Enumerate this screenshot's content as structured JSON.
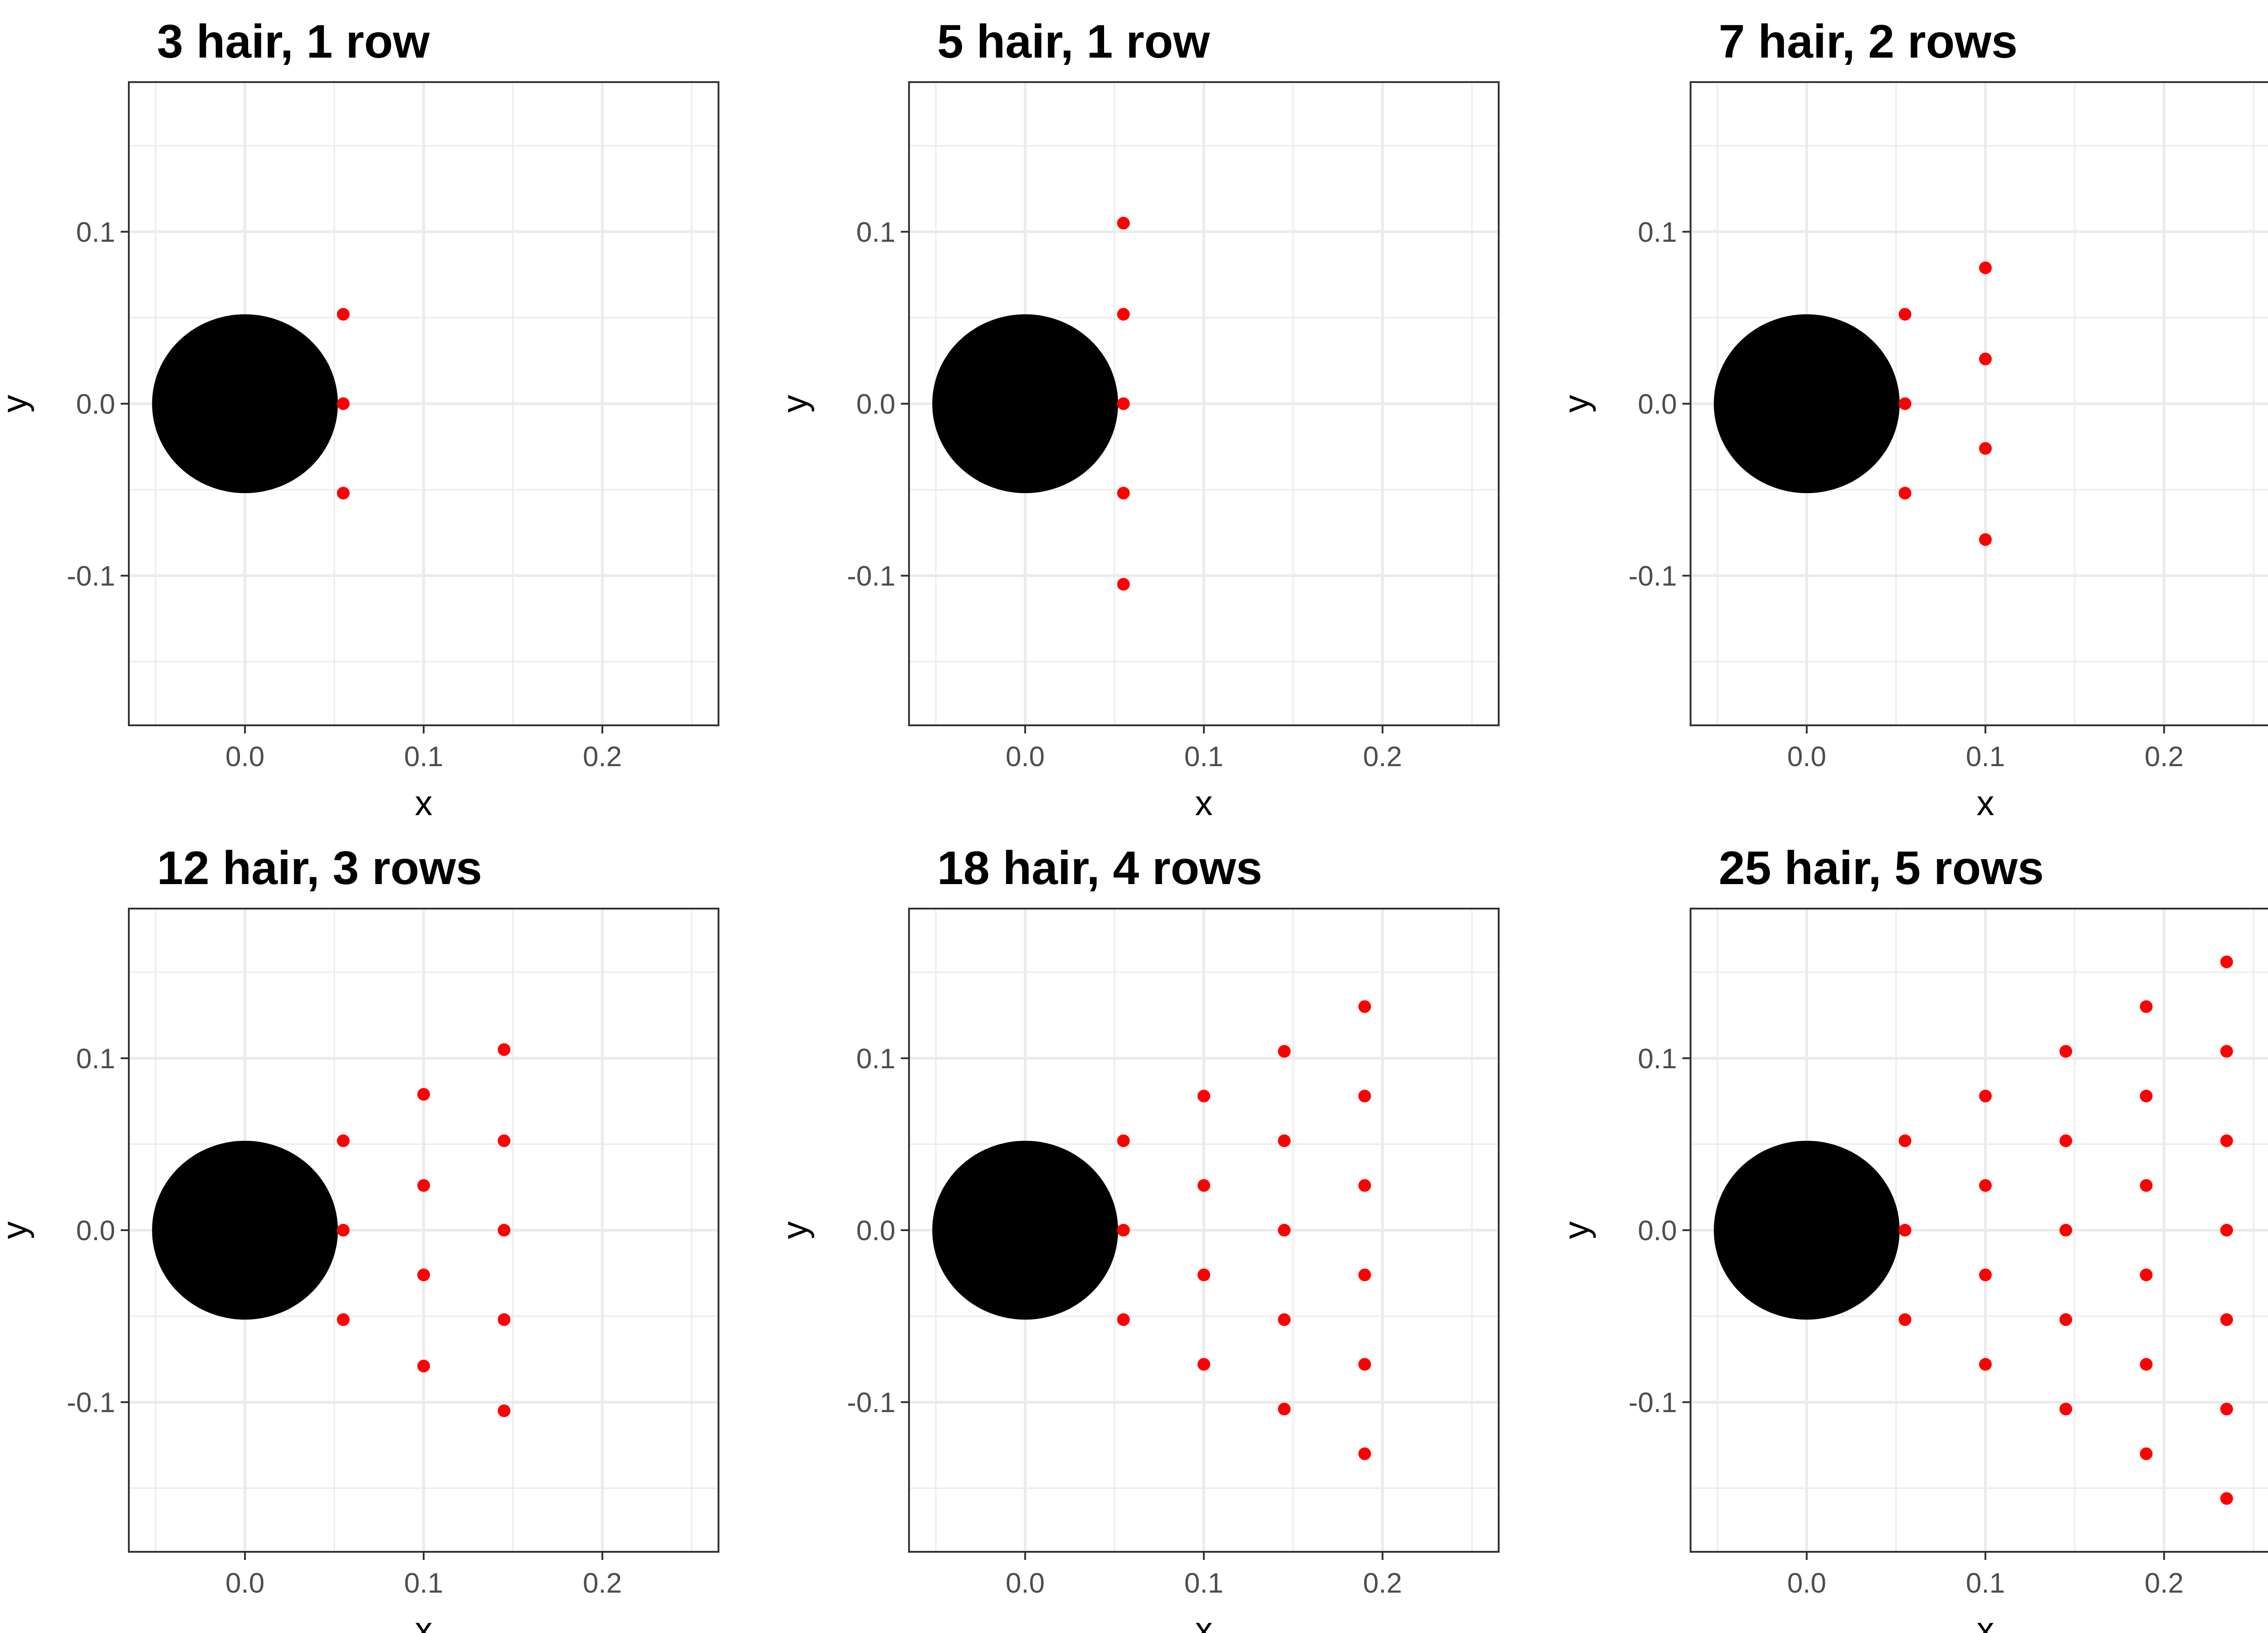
{
  "chart_data": [
    {
      "type": "scatter",
      "title": "3 hair, 1 row",
      "xlabel": "x",
      "ylabel": "y",
      "xlim": [
        -0.065,
        0.265
      ],
      "ylim": [
        -0.187,
        0.187
      ],
      "x_ticks": [
        "0.0",
        "0.1",
        "0.2"
      ],
      "y_ticks": [
        "0.1",
        "0.0",
        "-0.1"
      ],
      "grid": true,
      "circle": {
        "x": 0,
        "y": 0,
        "radius": 0.052,
        "color": "#000000"
      },
      "point_color": "#ff0000",
      "points": [
        [
          0.055,
          0.052
        ],
        [
          0.055,
          0.0
        ],
        [
          0.055,
          -0.052
        ]
      ]
    },
    {
      "type": "scatter",
      "title": "5 hair, 1 row",
      "xlabel": "x",
      "ylabel": "y",
      "xlim": [
        -0.065,
        0.265
      ],
      "ylim": [
        -0.187,
        0.187
      ],
      "x_ticks": [
        "0.0",
        "0.1",
        "0.2"
      ],
      "y_ticks": [
        "0.1",
        "0.0",
        "-0.1"
      ],
      "grid": true,
      "circle": {
        "x": 0,
        "y": 0,
        "radius": 0.052,
        "color": "#000000"
      },
      "point_color": "#ff0000",
      "points": [
        [
          0.055,
          0.105
        ],
        [
          0.055,
          0.052
        ],
        [
          0.055,
          0.0
        ],
        [
          0.055,
          -0.052
        ],
        [
          0.055,
          -0.105
        ]
      ]
    },
    {
      "type": "scatter",
      "title": "7 hair, 2 rows",
      "xlabel": "x",
      "ylabel": "y",
      "xlim": [
        -0.065,
        0.265
      ],
      "ylim": [
        -0.187,
        0.187
      ],
      "x_ticks": [
        "0.0",
        "0.1",
        "0.2"
      ],
      "y_ticks": [
        "0.1",
        "0.0",
        "-0.1"
      ],
      "grid": true,
      "circle": {
        "x": 0,
        "y": 0,
        "radius": 0.052,
        "color": "#000000"
      },
      "point_color": "#ff0000",
      "points": [
        [
          0.055,
          0.052
        ],
        [
          0.055,
          0.0
        ],
        [
          0.055,
          -0.052
        ],
        [
          0.1,
          0.079
        ],
        [
          0.1,
          0.026
        ],
        [
          0.1,
          -0.026
        ],
        [
          0.1,
          -0.079
        ]
      ]
    },
    {
      "type": "scatter",
      "title": "12 hair, 3 rows",
      "xlabel": "x",
      "ylabel": "y",
      "xlim": [
        -0.065,
        0.265
      ],
      "ylim": [
        -0.187,
        0.187
      ],
      "x_ticks": [
        "0.0",
        "0.1",
        "0.2"
      ],
      "y_ticks": [
        "0.1",
        "0.0",
        "-0.1"
      ],
      "grid": true,
      "circle": {
        "x": 0,
        "y": 0,
        "radius": 0.052,
        "color": "#000000"
      },
      "point_color": "#ff0000",
      "points": [
        [
          0.055,
          0.052
        ],
        [
          0.055,
          0.0
        ],
        [
          0.055,
          -0.052
        ],
        [
          0.1,
          0.079
        ],
        [
          0.1,
          0.026
        ],
        [
          0.1,
          -0.026
        ],
        [
          0.1,
          -0.079
        ],
        [
          0.145,
          0.105
        ],
        [
          0.145,
          0.052
        ],
        [
          0.145,
          0.0
        ],
        [
          0.145,
          -0.052
        ],
        [
          0.145,
          -0.105
        ]
      ]
    },
    {
      "type": "scatter",
      "title": "18 hair, 4 rows",
      "xlabel": "x",
      "ylabel": "y",
      "xlim": [
        -0.065,
        0.265
      ],
      "ylim": [
        -0.187,
        0.187
      ],
      "x_ticks": [
        "0.0",
        "0.1",
        "0.2"
      ],
      "y_ticks": [
        "0.1",
        "0.0",
        "-0.1"
      ],
      "grid": true,
      "circle": {
        "x": 0,
        "y": 0,
        "radius": 0.052,
        "color": "#000000"
      },
      "point_color": "#ff0000",
      "points": [
        [
          0.055,
          0.052
        ],
        [
          0.055,
          0.0
        ],
        [
          0.055,
          -0.052
        ],
        [
          0.1,
          0.078
        ],
        [
          0.1,
          0.026
        ],
        [
          0.1,
          -0.026
        ],
        [
          0.1,
          -0.078
        ],
        [
          0.145,
          0.104
        ],
        [
          0.145,
          0.052
        ],
        [
          0.145,
          0.0
        ],
        [
          0.145,
          -0.052
        ],
        [
          0.145,
          -0.104
        ],
        [
          0.19,
          0.13
        ],
        [
          0.19,
          0.078
        ],
        [
          0.19,
          0.026
        ],
        [
          0.19,
          -0.026
        ],
        [
          0.19,
          -0.078
        ],
        [
          0.19,
          -0.13
        ]
      ]
    },
    {
      "type": "scatter",
      "title": "25 hair, 5 rows",
      "xlabel": "x",
      "ylabel": "y",
      "xlim": [
        -0.065,
        0.265
      ],
      "ylim": [
        -0.187,
        0.187
      ],
      "x_ticks": [
        "0.0",
        "0.1",
        "0.2"
      ],
      "y_ticks": [
        "0.1",
        "0.0",
        "-0.1"
      ],
      "grid": true,
      "circle": {
        "x": 0,
        "y": 0,
        "radius": 0.052,
        "color": "#000000"
      },
      "point_color": "#ff0000",
      "points": [
        [
          0.055,
          0.052
        ],
        [
          0.055,
          0.0
        ],
        [
          0.055,
          -0.052
        ],
        [
          0.1,
          0.078
        ],
        [
          0.1,
          0.026
        ],
        [
          0.1,
          -0.026
        ],
        [
          0.1,
          -0.078
        ],
        [
          0.145,
          0.104
        ],
        [
          0.145,
          0.052
        ],
        [
          0.145,
          0.0
        ],
        [
          0.145,
          -0.052
        ],
        [
          0.145,
          -0.104
        ],
        [
          0.19,
          0.13
        ],
        [
          0.19,
          0.078
        ],
        [
          0.19,
          0.026
        ],
        [
          0.19,
          -0.026
        ],
        [
          0.19,
          -0.078
        ],
        [
          0.19,
          -0.13
        ],
        [
          0.235,
          0.156
        ],
        [
          0.235,
          0.104
        ],
        [
          0.235,
          0.052
        ],
        [
          0.235,
          0.0
        ],
        [
          0.235,
          -0.052
        ],
        [
          0.235,
          -0.104
        ],
        [
          0.235,
          -0.156
        ]
      ]
    }
  ]
}
